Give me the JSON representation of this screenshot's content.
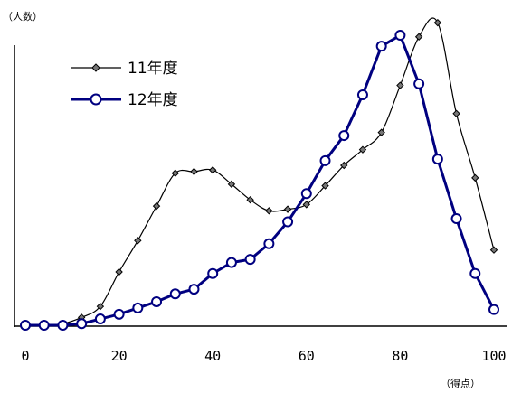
{
  "chart_data": {
    "type": "line",
    "ylabel": "（人数）",
    "xlabel": "（得点）",
    "xlim": [
      0,
      100
    ],
    "xticks": [
      "0",
      "20",
      "40",
      "60",
      "80",
      "100"
    ],
    "grid": false,
    "legend_position": "top-left",
    "series": [
      {
        "name": "11年度",
        "color": "#000000",
        "marker": "diamond",
        "x": [
          0,
          4,
          8,
          12,
          16,
          20,
          24,
          28,
          32,
          36,
          40,
          44,
          48,
          52,
          56,
          60,
          64,
          68,
          72,
          76,
          80,
          84,
          88,
          92,
          96,
          100
        ],
        "y": [
          0,
          0,
          0.5,
          2.5,
          6,
          17,
          27,
          38,
          48.5,
          49,
          49.5,
          45,
          40,
          36.5,
          37,
          38.5,
          44.5,
          51,
          56,
          61.5,
          76.5,
          92,
          96.5,
          67.5,
          47,
          24
        ]
      },
      {
        "name": "12年度",
        "color": "#000080",
        "marker": "circle",
        "x": [
          0,
          4,
          8,
          12,
          16,
          20,
          24,
          28,
          32,
          36,
          40,
          44,
          48,
          52,
          56,
          60,
          64,
          68,
          72,
          76,
          80,
          84,
          88,
          92,
          96,
          100
        ],
        "y": [
          0,
          0,
          0,
          0.5,
          2,
          3.5,
          5.5,
          7.5,
          10,
          11.5,
          16.5,
          20,
          21,
          26,
          33,
          42,
          52.5,
          60.5,
          73.5,
          89,
          92.5,
          77,
          53,
          34,
          16.5,
          5
        ]
      }
    ]
  }
}
